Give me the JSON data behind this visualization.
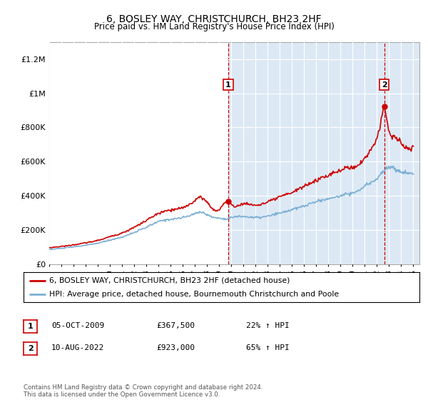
{
  "title": "6, BOSLEY WAY, CHRISTCHURCH, BH23 2HF",
  "subtitle": "Price paid vs. HM Land Registry's House Price Index (HPI)",
  "ylim": [
    0,
    1300000
  ],
  "yticks": [
    0,
    200000,
    400000,
    600000,
    800000,
    1000000,
    1200000
  ],
  "ytick_labels": [
    "£0",
    "£200K",
    "£400K",
    "£600K",
    "£800K",
    "£1M",
    "£1.2M"
  ],
  "background_color_left": "#ffffff",
  "background_color_right": "#dce9f5",
  "marker1_x": 2009.75,
  "marker1_y": 367500,
  "marker2_x": 2022.6,
  "marker2_y": 923000,
  "legend_line1": "6, BOSLEY WAY, CHRISTCHURCH, BH23 2HF (detached house)",
  "legend_line2": "HPI: Average price, detached house, Bournemouth Christchurch and Poole",
  "footnote": "Contains HM Land Registry data © Crown copyright and database right 2024.\nThis data is licensed under the Open Government Licence v3.0.",
  "table_row1": [
    "1",
    "05-OCT-2009",
    "£367,500",
    "22% ↑ HPI"
  ],
  "table_row2": [
    "2",
    "10-AUG-2022",
    "£923,000",
    "65% ↑ HPI"
  ],
  "line_color_red": "#cc0000",
  "line_color_blue": "#7bafd4",
  "xmin": 1995,
  "xmax": 2025.5,
  "title_fontsize": 10,
  "subtitle_fontsize": 9
}
